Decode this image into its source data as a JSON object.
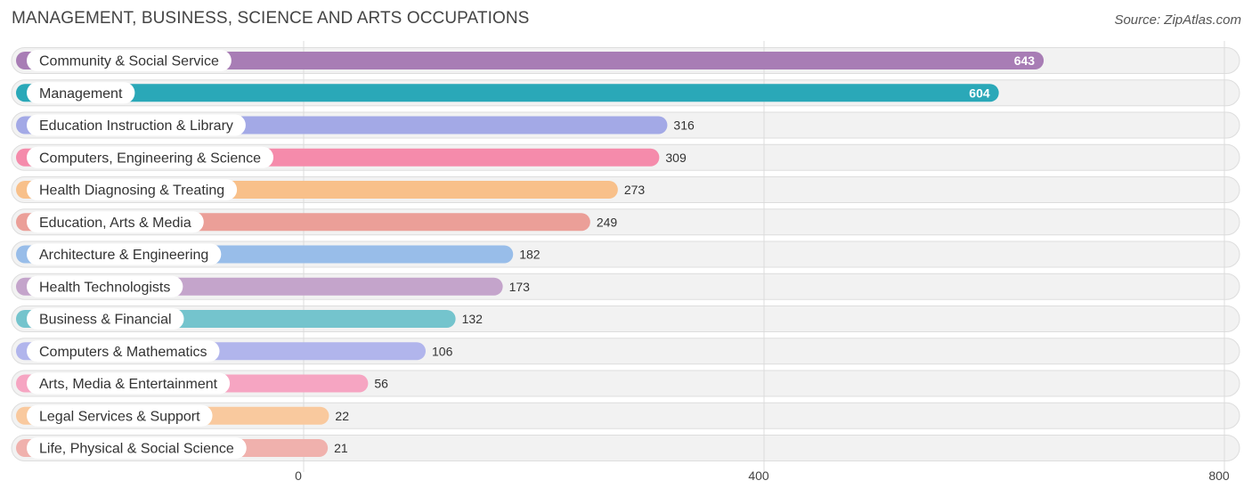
{
  "chart_data": {
    "type": "bar",
    "orientation": "horizontal",
    "title": "MANAGEMENT, BUSINESS, SCIENCE AND ARTS OCCUPATIONS",
    "source": "Source: ZipAtlas.com",
    "xlim": [
      0,
      800
    ],
    "xticks": [
      0,
      400,
      800
    ],
    "grid": true,
    "categories": [
      "Community & Social Service",
      "Management",
      "Education Instruction & Library",
      "Computers, Engineering & Science",
      "Health Diagnosing & Treating",
      "Education, Arts & Media",
      "Architecture & Engineering",
      "Health Technologists",
      "Business & Financial",
      "Computers & Mathematics",
      "Arts, Media & Entertainment",
      "Legal Services & Support",
      "Life, Physical & Social Science"
    ],
    "values": [
      643,
      604,
      316,
      309,
      273,
      249,
      182,
      173,
      132,
      106,
      56,
      22,
      21
    ],
    "colors": [
      "#a87db5",
      "#2aa8b8",
      "#a3a9e6",
      "#f58bab",
      "#f8c08a",
      "#eb9f98",
      "#98bde9",
      "#c4a4cb",
      "#74c4cd",
      "#b1b5ec",
      "#f6a5c2",
      "#f9c99e",
      "#f0b1ad"
    ]
  }
}
